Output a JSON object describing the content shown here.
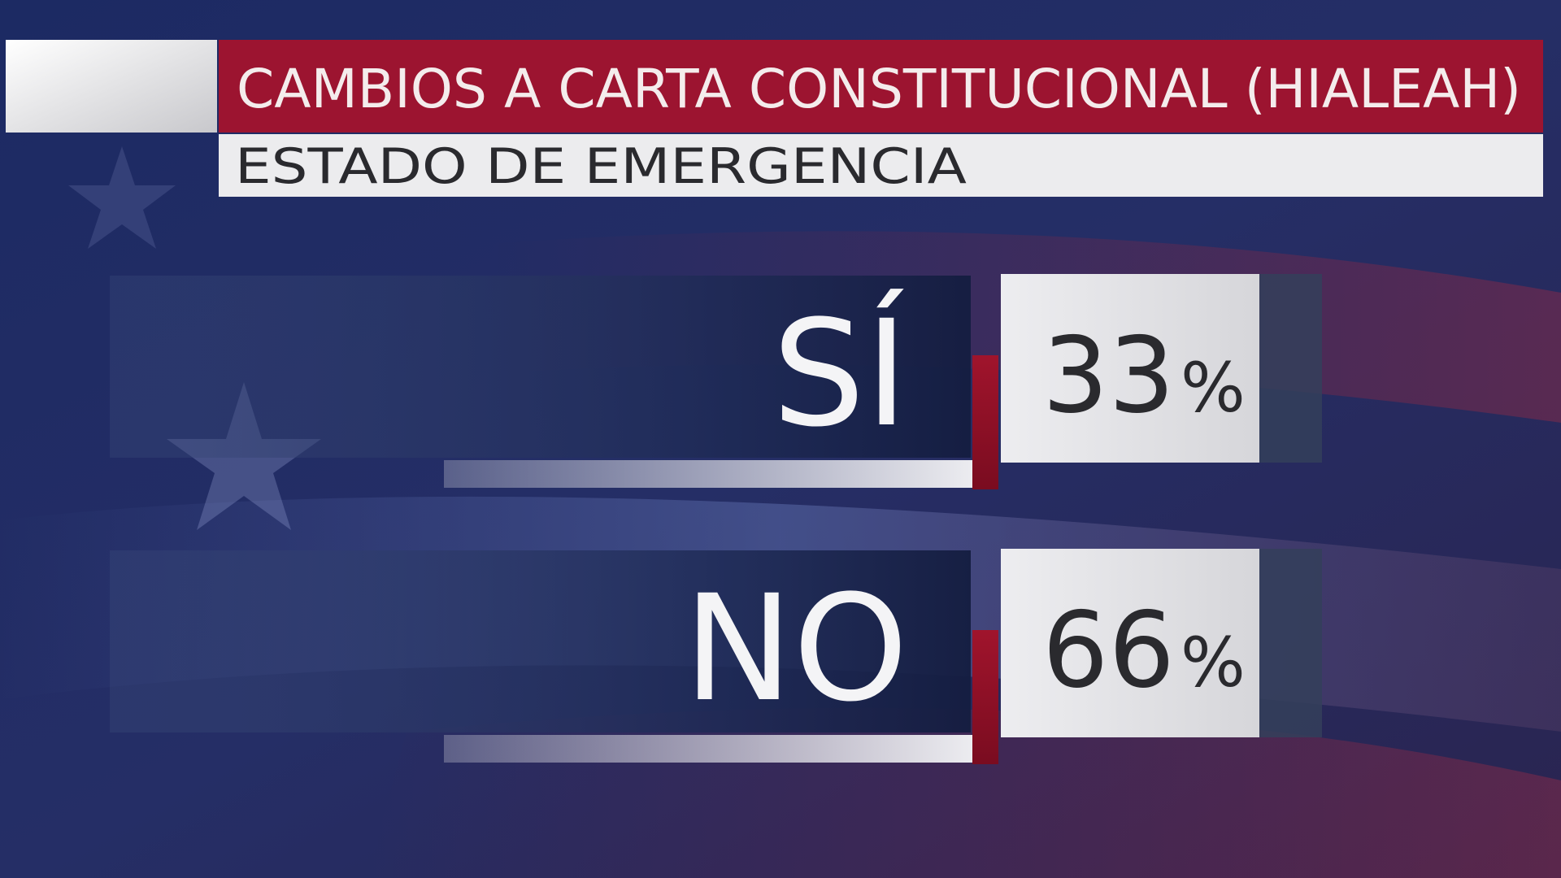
{
  "header": {
    "title": "CAMBIOS A CARTA CONSTITUCIONAL (HIALEAH)",
    "subtitle": "ESTADO DE EMERGENCIA"
  },
  "results": [
    {
      "label": "SÍ",
      "value": "33",
      "unit": "%"
    },
    {
      "label": "NO",
      "value": "66",
      "unit": "%"
    }
  ]
}
